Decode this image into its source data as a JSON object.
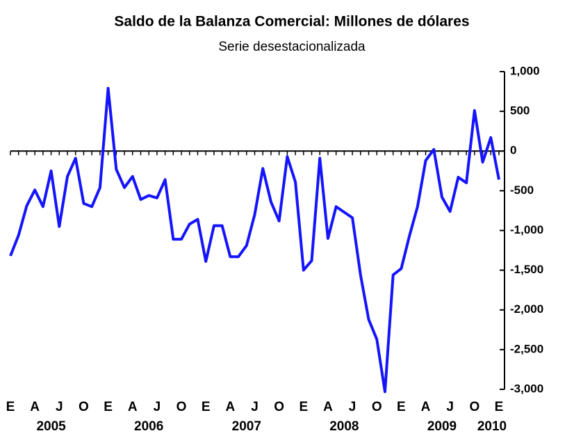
{
  "chart_data": {
    "type": "line",
    "title": "Saldo de la Balanza Comercial: Millones de dólares",
    "subtitle": "Serie desestacionalizada",
    "categories": [
      "E",
      null,
      null,
      "A",
      null,
      null,
      "J",
      null,
      null,
      "O",
      null,
      null,
      "E",
      null,
      null,
      "A",
      null,
      null,
      "J",
      null,
      null,
      "O",
      null,
      null,
      "E",
      null,
      null,
      "A",
      null,
      null,
      "J",
      null,
      null,
      "O",
      null,
      null,
      "E",
      null,
      null,
      "A",
      null,
      null,
      "J",
      null,
      null,
      "O",
      null,
      null,
      "E",
      null,
      null,
      "A",
      null,
      null,
      "J",
      null,
      null,
      "O",
      null,
      null,
      "E"
    ],
    "year_labels": [
      "2005",
      "2006",
      "2007",
      "2008",
      "2009",
      "2010"
    ],
    "series": [
      {
        "name": "Saldo",
        "color": "#1414ff",
        "values": [
          -1320,
          -1060,
          -690,
          -490,
          -700,
          -250,
          -950,
          -320,
          -90,
          -660,
          -700,
          -460,
          790,
          -230,
          -460,
          -320,
          -610,
          -560,
          -590,
          -360,
          -1110,
          -1110,
          -920,
          -860,
          -1390,
          -940,
          -940,
          -1330,
          -1330,
          -1190,
          -800,
          -220,
          -640,
          -880,
          -70,
          -390,
          -1500,
          -1380,
          -90,
          -1100,
          -700,
          -770,
          -840,
          -1560,
          -2120,
          -2370,
          -3030,
          -1560,
          -1480,
          -1070,
          -700,
          -120,
          20,
          -580,
          -760,
          -330,
          -400,
          510,
          -140,
          170,
          -360
        ]
      }
    ],
    "ylim": [
      -3000,
      1000
    ],
    "yticks": [
      {
        "value": 1000,
        "label": "1,000"
      },
      500,
      0,
      -500,
      {
        "value": -1000,
        "label": "-1,000"
      },
      {
        "value": -1500,
        "label": "-1,500"
      },
      {
        "value": -2000,
        "label": "-2,000"
      },
      {
        "value": -2500,
        "label": "-2,500"
      },
      {
        "value": -3000,
        "label": "-3,000"
      }
    ],
    "grid": false
  }
}
